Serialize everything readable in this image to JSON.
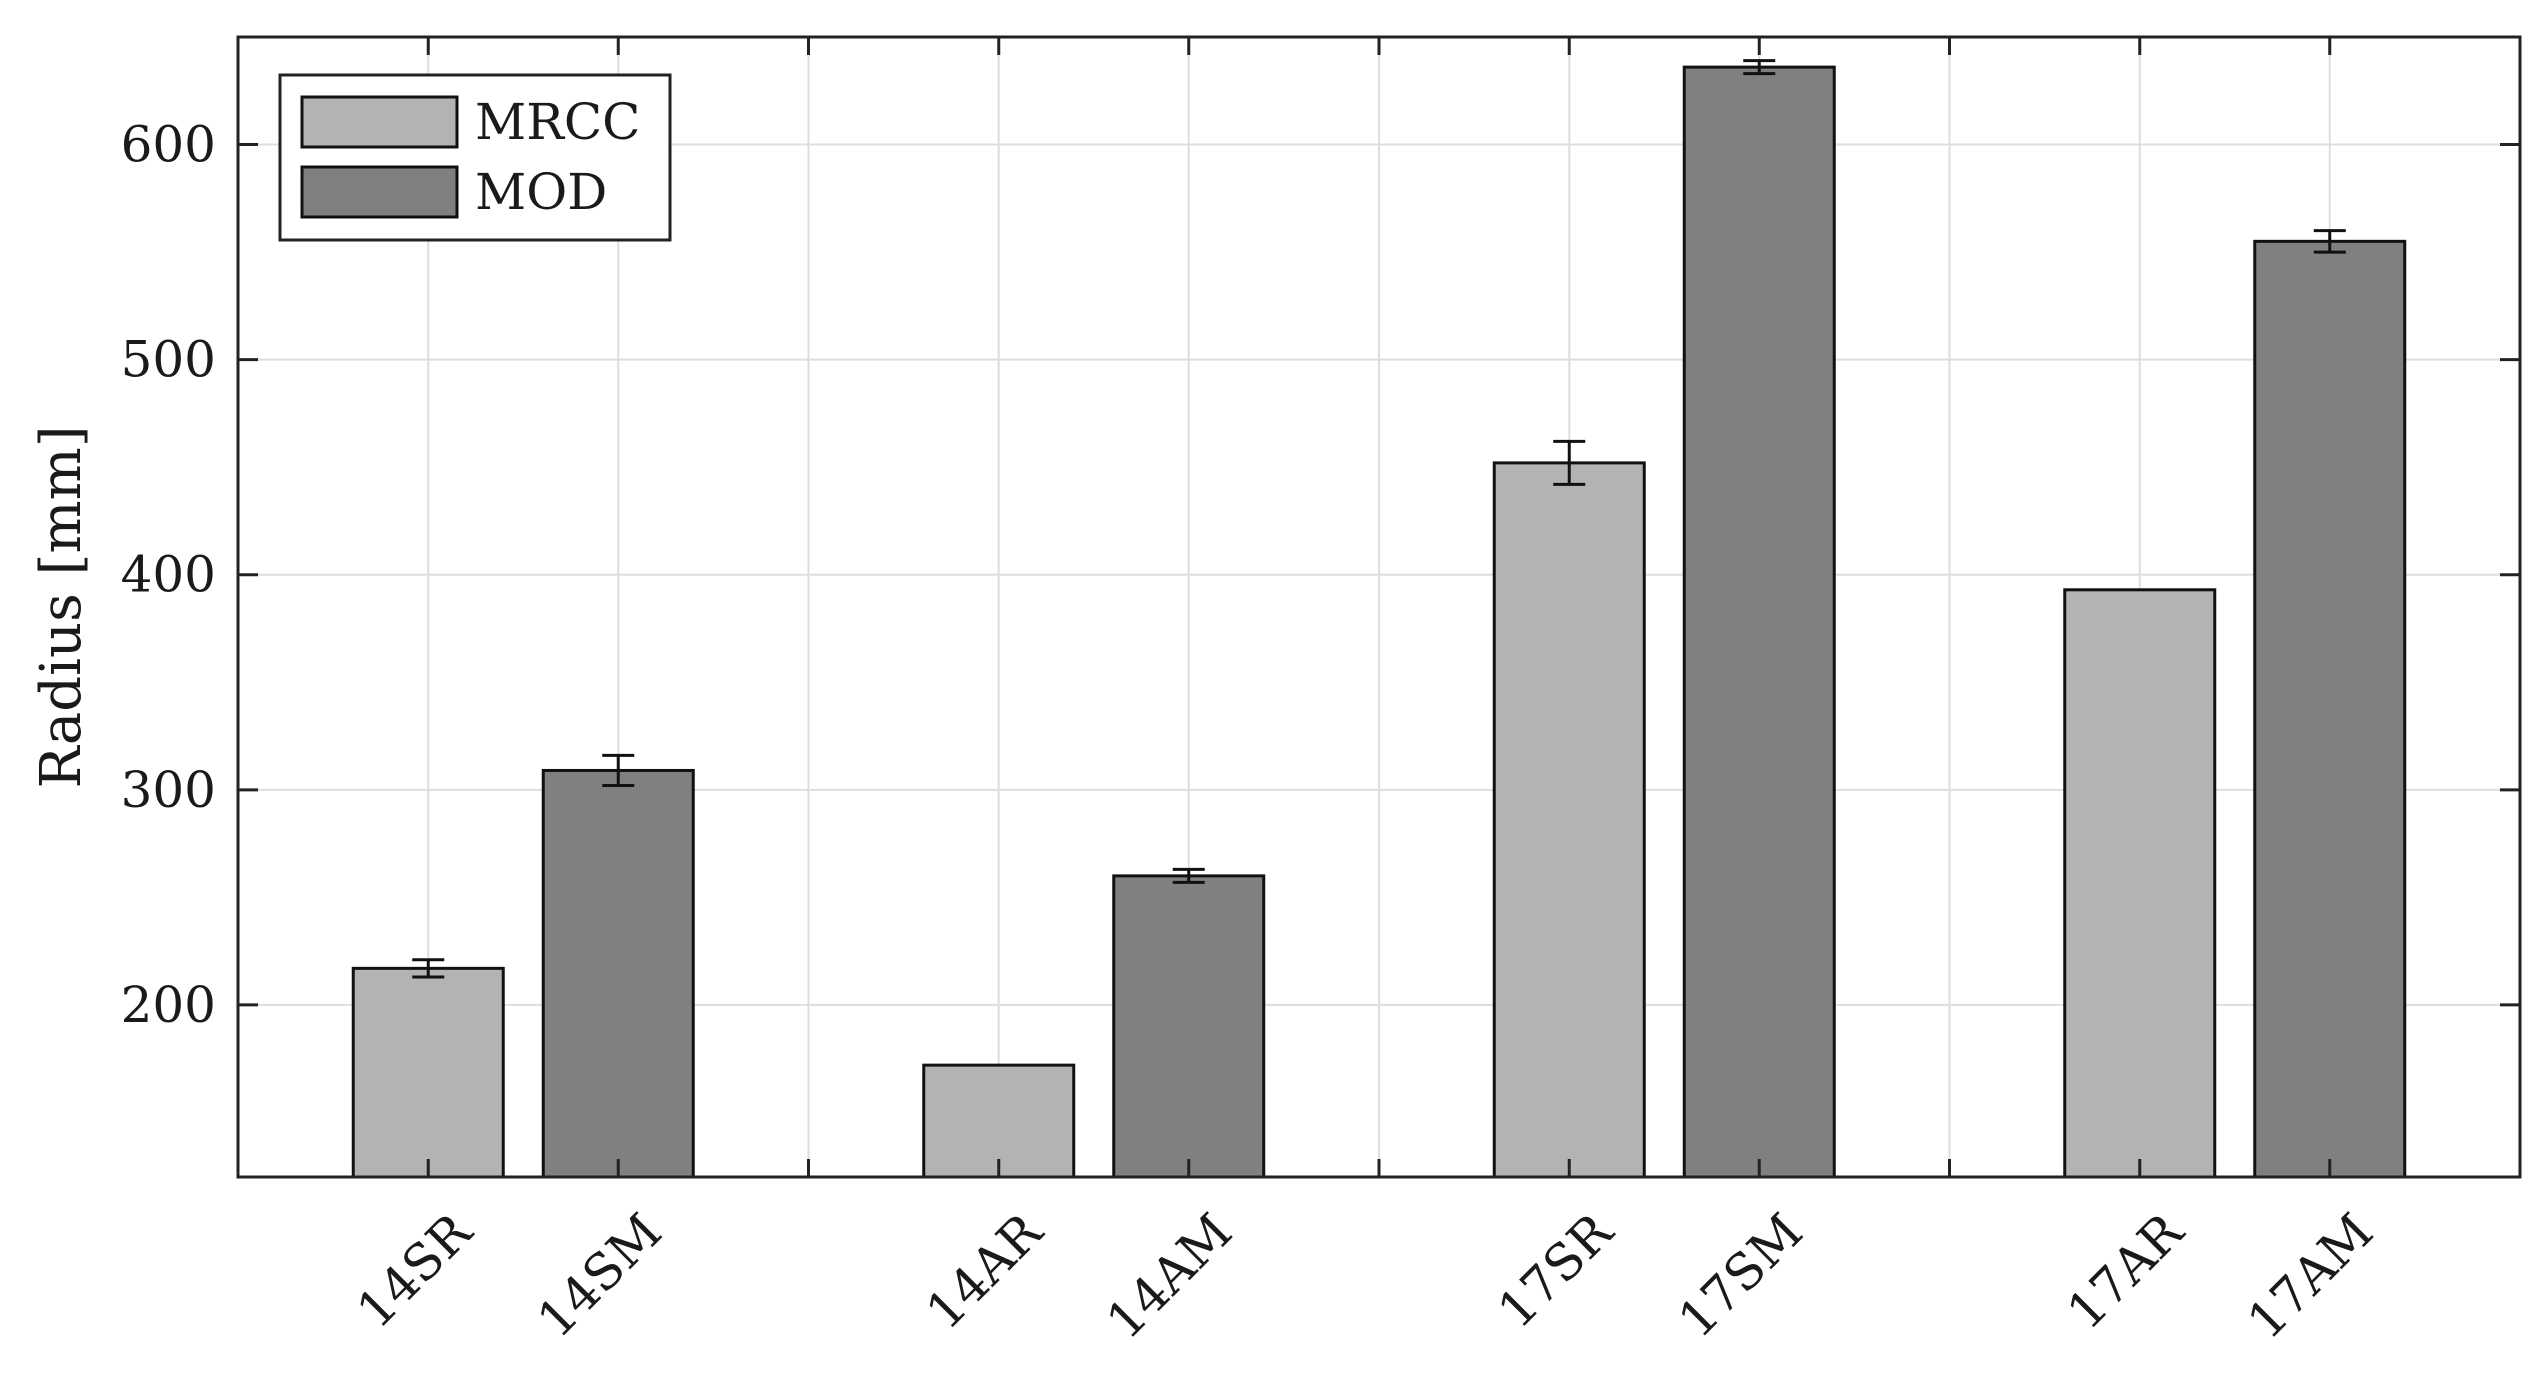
{
  "chart_data": {
    "type": "bar",
    "title": "",
    "xlabel": "",
    "ylabel": "Radius [mm]",
    "ylim": [
      120,
      650
    ],
    "yticks": [
      200,
      300,
      400,
      500,
      600
    ],
    "grid": true,
    "legend_position": "top-left",
    "groups": [
      {
        "bars": [
          {
            "label": "14SR",
            "series": "MRCC",
            "value": 217,
            "error": 4
          },
          {
            "label": "14SM",
            "series": "MOD",
            "value": 309,
            "error": 7
          }
        ]
      },
      {
        "bars": [
          {
            "label": "14AR",
            "series": "MRCC",
            "value": 172,
            "error": null
          },
          {
            "label": "14AM",
            "series": "MOD",
            "value": 260,
            "error": 3
          }
        ]
      },
      {
        "bars": [
          {
            "label": "17SR",
            "series": "MRCC",
            "value": 452,
            "error": 10
          },
          {
            "label": "17SM",
            "series": "MOD",
            "value": 636,
            "error": 3
          }
        ]
      },
      {
        "bars": [
          {
            "label": "17AR",
            "series": "MRCC",
            "value": 393,
            "error": null
          },
          {
            "label": "17AM",
            "series": "MOD",
            "value": 555,
            "error": 5
          }
        ]
      }
    ],
    "series": [
      {
        "name": "MRCC",
        "color": "#b3b3b3"
      },
      {
        "name": "MOD",
        "color": "#808080"
      }
    ]
  }
}
